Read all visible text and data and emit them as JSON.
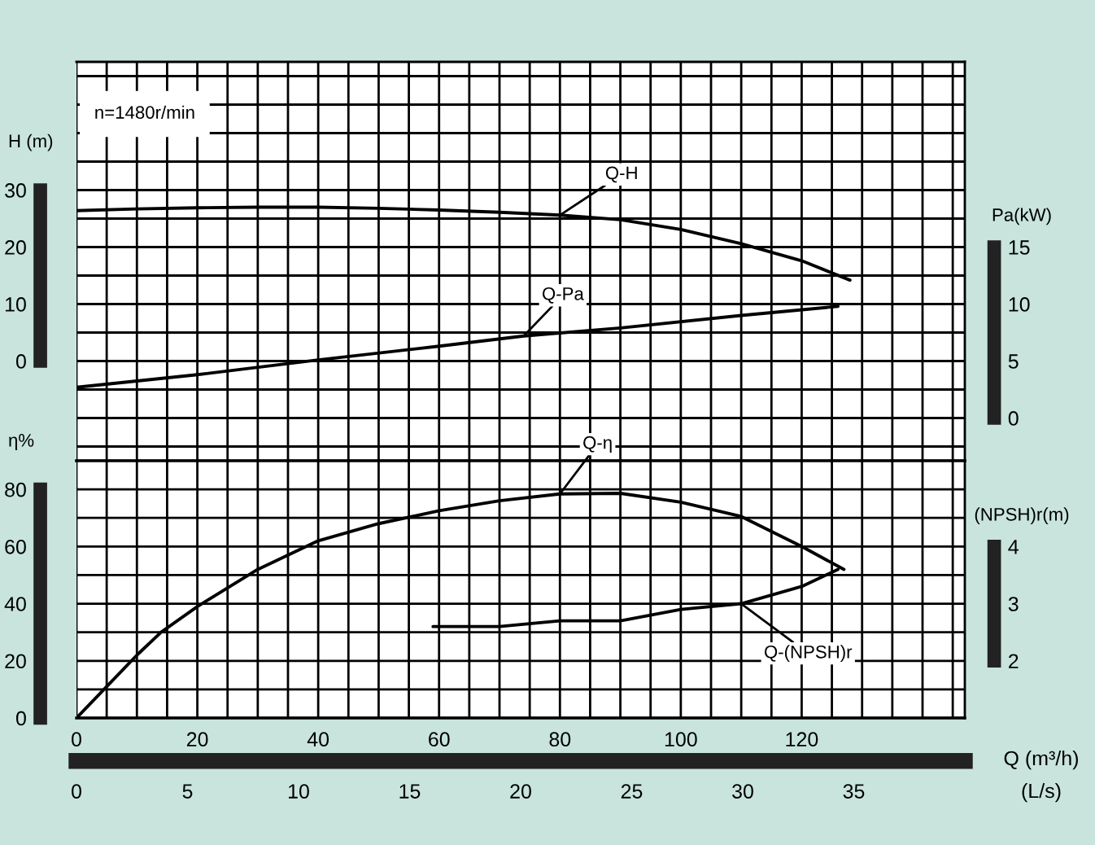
{
  "chart_data": [
    {
      "type": "line",
      "annotations": [
        "n=1480r/min"
      ],
      "xlim": [
        0,
        147
      ],
      "xticks": [
        0,
        20,
        40,
        60,
        80,
        100,
        120
      ],
      "tick_labels": "y",
      "ylabel": "H (m)",
      "ylim": [
        -17.5,
        52.5
      ],
      "yticks": [
        0,
        10,
        20,
        30
      ],
      "y2label": "Pa(kW)",
      "y2lim": [
        -3.75,
        31.25
      ],
      "y2ticks": [
        0,
        5,
        10,
        15
      ],
      "grid": true,
      "marker": "none",
      "line_style": "solid",
      "series": [
        {
          "name": "Q-H",
          "color": "#000000",
          "x": [
            0,
            10,
            20,
            30,
            40,
            50,
            60,
            70,
            80,
            90,
            100,
            110,
            120,
            128
          ],
          "values": [
            26.4,
            26.7,
            26.9,
            27.0,
            27.0,
            26.8,
            26.5,
            26.1,
            25.6,
            24.8,
            23.1,
            20.6,
            17.6,
            14.2
          ]
        },
        {
          "name": "Q-Pa",
          "color": "#000000",
          "axis": "y2",
          "x": [
            0,
            20,
            40,
            60,
            74,
            90,
            110,
            126
          ],
          "values": [
            2.7,
            3.8,
            5.1,
            6.3,
            7.2,
            7.9,
            9.0,
            9.8
          ]
        }
      ]
    },
    {
      "type": "line",
      "xlabel": "Q (m³/h)",
      "xlim": [
        0,
        147
      ],
      "xticks": [
        0,
        20,
        40,
        60,
        80,
        100,
        120
      ],
      "x2label": "(L/s)",
      "x2lim": [
        0,
        40
      ],
      "x2ticks": [
        0,
        5,
        10,
        15,
        20,
        25,
        30,
        35
      ],
      "ylabel": "η%",
      "ylim": [
        0,
        90
      ],
      "yticks": [
        0,
        20,
        40,
        60,
        80
      ],
      "y2label": "(NPSH)r(m)",
      "y2lim": [
        1,
        5.5
      ],
      "y2ticks": [
        2,
        3,
        4
      ],
      "grid": true,
      "marker": "none",
      "line_style": "solid",
      "series": [
        {
          "name": "Q-η",
          "color": "#000000",
          "x": [
            0,
            5,
            10,
            14,
            20,
            30,
            40,
            50,
            60,
            70,
            80,
            90,
            100,
            110,
            120,
            127
          ],
          "values": [
            0,
            11,
            22,
            30,
            39,
            52,
            62,
            68,
            72.5,
            76,
            78.4,
            78.6,
            75.5,
            70.5,
            60,
            52
          ]
        },
        {
          "name": "Q-(NPSH)r",
          "color": "#000000",
          "axis": "y2",
          "x": [
            59,
            70,
            80,
            90,
            100,
            110,
            120,
            126
          ],
          "values": [
            2.6,
            2.6,
            2.7,
            2.7,
            2.9,
            3.0,
            3.3,
            3.6
          ]
        }
      ]
    }
  ]
}
